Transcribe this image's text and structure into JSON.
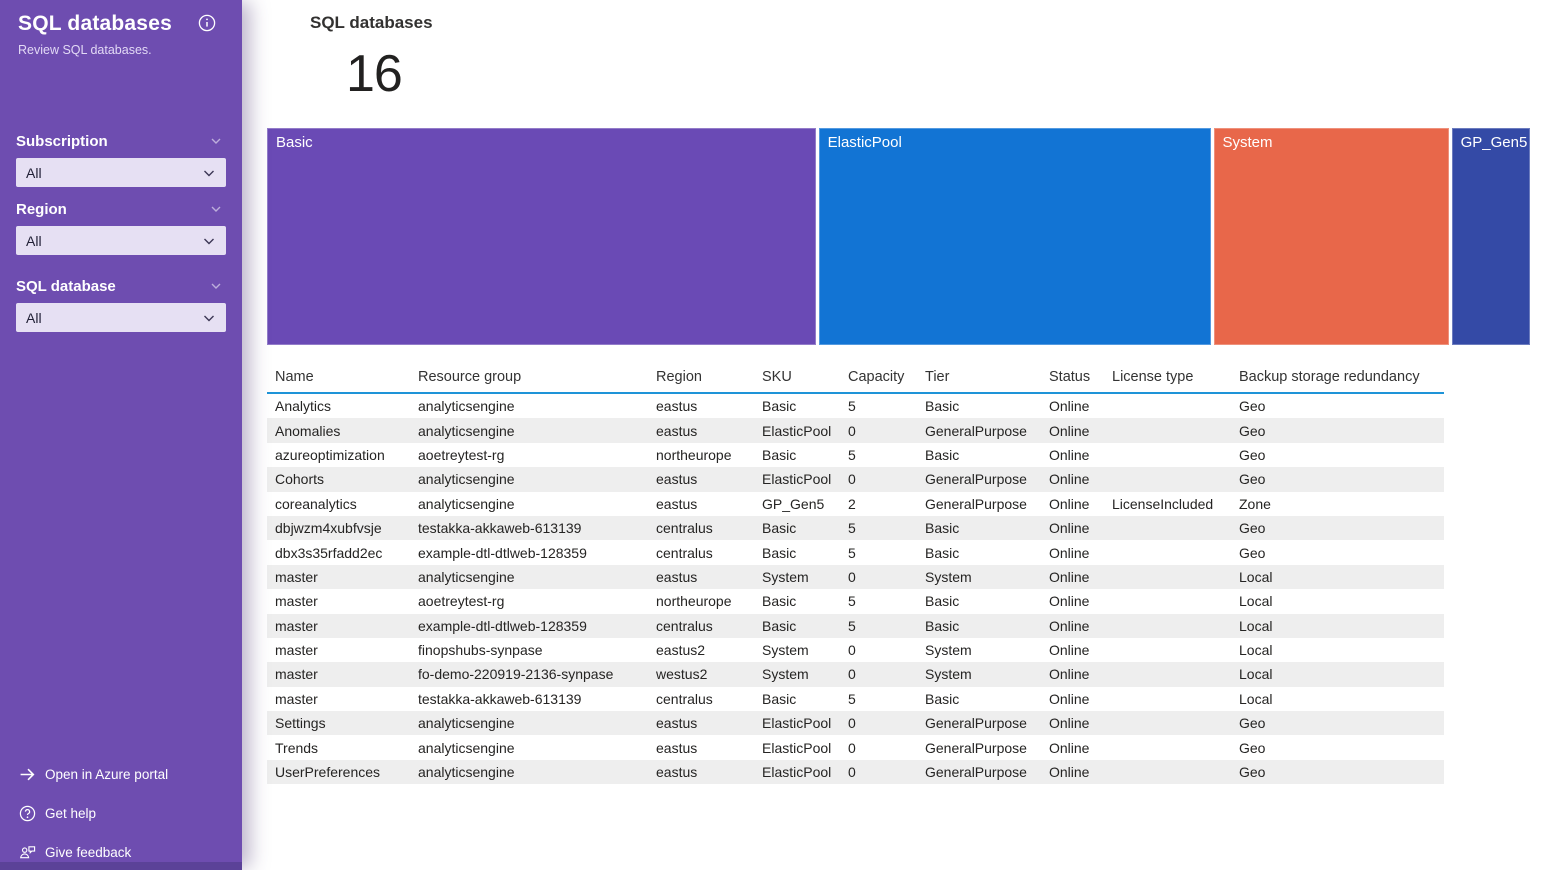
{
  "sidebar": {
    "title": "SQL databases",
    "subtitle": "Review SQL databases.",
    "info_icon": "info-icon",
    "filters": [
      {
        "label": "Subscription",
        "value": "All"
      },
      {
        "label": "Region",
        "value": "All"
      },
      {
        "label": "SQL database",
        "value": "All"
      }
    ],
    "links": [
      {
        "label": "Open in Azure portal",
        "icon": "arrow-right-icon"
      },
      {
        "label": "Get help",
        "icon": "help-icon"
      },
      {
        "label": "Give feedback",
        "icon": "feedback-icon"
      }
    ]
  },
  "main": {
    "title": "SQL databases",
    "metric_value": "16"
  },
  "treemap": {
    "total": 16,
    "segments": [
      {
        "label": "Basic",
        "count": 7,
        "color": "#6a4ab5"
      },
      {
        "label": "ElasticPool",
        "count": 5,
        "color": "#1274d4"
      },
      {
        "label": "System",
        "count": 3,
        "color": "#e8674a"
      },
      {
        "label": "GP_Gen5",
        "count": 1,
        "color": "#344aa6"
      }
    ]
  },
  "table": {
    "columns": [
      "Name",
      "Resource group",
      "Region",
      "SKU",
      "Capacity",
      "Tier",
      "Status",
      "License type",
      "Backup storage redundancy"
    ],
    "rows": [
      [
        "Analytics",
        "analyticsengine",
        "eastus",
        "Basic",
        "5",
        "Basic",
        "Online",
        "",
        "Geo"
      ],
      [
        "Anomalies",
        "analyticsengine",
        "eastus",
        "ElasticPool",
        "0",
        "GeneralPurpose",
        "Online",
        "",
        "Geo"
      ],
      [
        "azureoptimization",
        "aoetreytest-rg",
        "northeurope",
        "Basic",
        "5",
        "Basic",
        "Online",
        "",
        "Geo"
      ],
      [
        "Cohorts",
        "analyticsengine",
        "eastus",
        "ElasticPool",
        "0",
        "GeneralPurpose",
        "Online",
        "",
        "Geo"
      ],
      [
        "coreanalytics",
        "analyticsengine",
        "eastus",
        "GP_Gen5",
        "2",
        "GeneralPurpose",
        "Online",
        "LicenseIncluded",
        "Zone"
      ],
      [
        "dbjwzm4xubfvsje",
        "testakka-akkaweb-613139",
        "centralus",
        "Basic",
        "5",
        "Basic",
        "Online",
        "",
        "Geo"
      ],
      [
        "dbx3s35rfadd2ec",
        "example-dtl-dtlweb-128359",
        "centralus",
        "Basic",
        "5",
        "Basic",
        "Online",
        "",
        "Geo"
      ],
      [
        "master",
        "analyticsengine",
        "eastus",
        "System",
        "0",
        "System",
        "Online",
        "",
        "Local"
      ],
      [
        "master",
        "aoetreytest-rg",
        "northeurope",
        "Basic",
        "5",
        "Basic",
        "Online",
        "",
        "Local"
      ],
      [
        "master",
        "example-dtl-dtlweb-128359",
        "centralus",
        "Basic",
        "5",
        "Basic",
        "Online",
        "",
        "Local"
      ],
      [
        "master",
        "finopshubs-synpase",
        "eastus2",
        "System",
        "0",
        "System",
        "Online",
        "",
        "Local"
      ],
      [
        "master",
        "fo-demo-220919-2136-synpase",
        "westus2",
        "System",
        "0",
        "System",
        "Online",
        "",
        "Local"
      ],
      [
        "master",
        "testakka-akkaweb-613139",
        "centralus",
        "Basic",
        "5",
        "Basic",
        "Online",
        "",
        "Local"
      ],
      [
        "Settings",
        "analyticsengine",
        "eastus",
        "ElasticPool",
        "0",
        "GeneralPurpose",
        "Online",
        "",
        "Geo"
      ],
      [
        "Trends",
        "analyticsengine",
        "eastus",
        "ElasticPool",
        "0",
        "GeneralPurpose",
        "Online",
        "",
        "Geo"
      ],
      [
        "UserPreferences",
        "analyticsengine",
        "eastus",
        "ElasticPool",
        "0",
        "GeneralPurpose",
        "Online",
        "",
        "Geo"
      ]
    ]
  },
  "colors": {
    "sidebar_bg": "#6e4db0",
    "sidebar_scrollbar": "#5b4298",
    "filter_box_bg": "#e6e0f3",
    "filter_box_text": "#201f35",
    "header_underline": "#1e94d8",
    "row_alt_bg": "#eeeeee",
    "text_dark": "#252423"
  }
}
